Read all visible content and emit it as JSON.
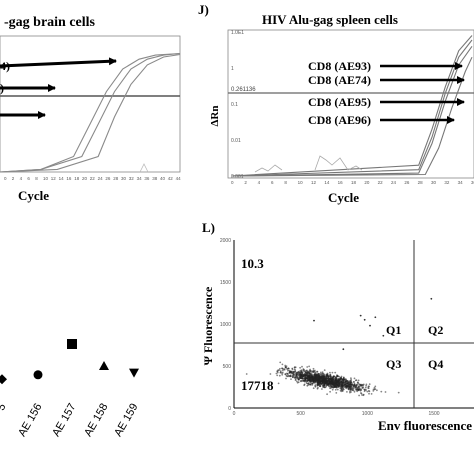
{
  "panel_i": {
    "title": "-gag brain cells",
    "arrow_labels": [
      "4)",
      ")",
      ""
    ],
    "xlabel": "Cycle",
    "x_ticks": [
      "0",
      "2",
      "4",
      "6",
      "8",
      "10",
      "12",
      "14",
      "16",
      "18",
      "20",
      "22",
      "24",
      "26",
      "28",
      "30",
      "32",
      "34",
      "36",
      "38",
      "40",
      "42",
      "44"
    ]
  },
  "panel_j": {
    "letter": "J)",
    "title": "HIV Alu-gag spleen cells",
    "ylabel": "ΔRn",
    "xlabel": "Cycle",
    "threshold_label": "0.261136",
    "y_ticks": [
      "1.0E1",
      "1",
      "0.1",
      "0.01",
      "0.001"
    ],
    "x_ticks": [
      "0",
      "2",
      "4",
      "6",
      "8",
      "10",
      "12",
      "14",
      "16",
      "18",
      "20",
      "22",
      "24",
      "26",
      "28",
      "30",
      "32",
      "34",
      "36"
    ],
    "arrow_labels": [
      "CD8 (AE93)",
      "CD8 (AE74)",
      "CD8 (AE95)",
      "CD8 (AE96)"
    ]
  },
  "panel_k": {
    "x_labels": [
      "5",
      "AE 156",
      "AE 157",
      "AE 158",
      "AE 159"
    ]
  },
  "panel_l": {
    "letter": "L)",
    "ylabel": "Ψ Fluorescence",
    "xlabel": "Env fluorescence",
    "top_left_value": "10.3",
    "bottom_left_value": "17718",
    "quadrants": [
      "Q1",
      "Q2",
      "Q3",
      "Q4"
    ],
    "y_ticks": [
      "2000",
      "1500",
      "1000",
      "500",
      "0"
    ],
    "x_ticks": [
      "0",
      "500",
      "1000",
      "1500"
    ]
  },
  "chart_data": [
    {
      "type": "line",
      "panel": "I",
      "title": "-gag brain cells",
      "xlabel": "Cycle",
      "series": [
        {
          "x": [
            0,
            10,
            18,
            22,
            26,
            30,
            34,
            38,
            44
          ],
          "y": [
            0.001,
            0.0012,
            0.003,
            0.03,
            0.3,
            1.5,
            3.0,
            4.0,
            4.5
          ]
        },
        {
          "x": [
            0,
            10,
            20,
            24,
            28,
            32,
            36,
            40,
            44
          ],
          "y": [
            0.001,
            0.0012,
            0.003,
            0.03,
            0.3,
            1.5,
            3.0,
            4.0,
            4.5
          ]
        },
        {
          "x": [
            0,
            14,
            24,
            28,
            32,
            36,
            40,
            44
          ],
          "y": [
            0.001,
            0.0012,
            0.003,
            0.05,
            0.5,
            2.0,
            3.5,
            4.2
          ]
        }
      ]
    },
    {
      "type": "line",
      "panel": "J",
      "title": "HIV Alu-gag spleen cells",
      "xlabel": "Cycle",
      "ylabel": "ΔRn",
      "yscale": "log",
      "threshold": 0.261136,
      "series": [
        {
          "name": "CD8 (AE93)",
          "x": [
            0,
            28,
            30,
            32,
            34,
            36
          ],
          "y": [
            0.001,
            0.002,
            0.02,
            0.3,
            3,
            8
          ]
        },
        {
          "name": "CD8 (AE74)",
          "x": [
            0,
            28,
            30,
            32,
            34,
            36
          ],
          "y": [
            0.001,
            0.0015,
            0.012,
            0.2,
            2,
            6
          ]
        },
        {
          "name": "CD8 (AE95)",
          "x": [
            0,
            28,
            30,
            32,
            34,
            36
          ],
          "y": [
            0.001,
            0.0012,
            0.008,
            0.12,
            1.2,
            4
          ]
        },
        {
          "name": "CD8 (AE96)",
          "x": [
            0,
            29,
            31,
            33,
            35,
            36
          ],
          "y": [
            0.001,
            0.0011,
            0.006,
            0.08,
            0.8,
            2
          ]
        }
      ]
    },
    {
      "type": "scatter",
      "panel": "K",
      "categories": [
        "5",
        "AE 156",
        "AE 157",
        "AE 158",
        "AE 159"
      ],
      "values": [
        0.2,
        0.3,
        1.0,
        0.5,
        0.35
      ],
      "markers": [
        "diamond",
        "circle",
        "square",
        "triangle",
        "triangle-down"
      ]
    },
    {
      "type": "scatter",
      "panel": "L",
      "xlabel": "Env fluorescence",
      "ylabel": "Ψ Fluorescence",
      "xlim": [
        0,
        1800
      ],
      "ylim": [
        0,
        2000
      ],
      "quadrant_gates": {
        "x": 1150,
        "y": 560
      },
      "cluster_center": [
        680,
        330
      ],
      "annotations": [
        "10.3",
        "17718",
        "Q1",
        "Q2",
        "Q3",
        "Q4"
      ]
    }
  ]
}
